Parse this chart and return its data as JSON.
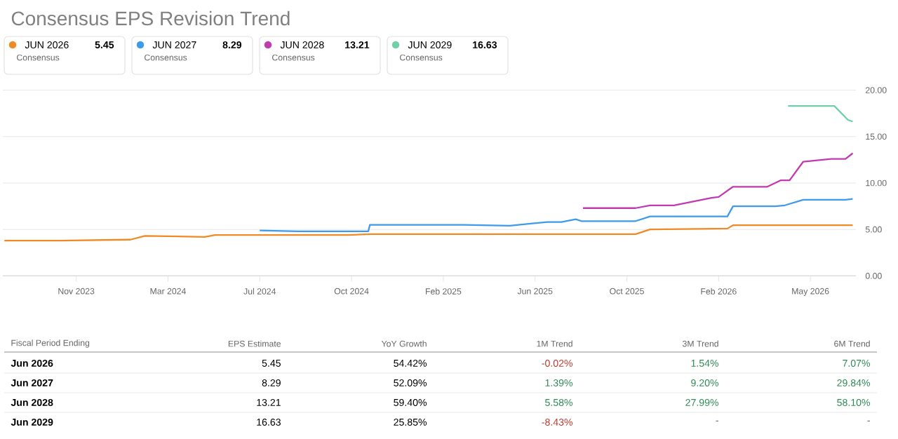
{
  "chart_data": {
    "type": "line",
    "title": "Consensus EPS Revision Trend",
    "x": [
      "2023-08-22",
      "2023-10-31",
      "2024-01-23",
      "2024-01-27",
      "2024-02-14",
      "2024-04-29",
      "2024-05-12",
      "2024-10-25",
      "2024-11-22",
      "2025-10-21",
      "2025-11-08",
      "2026-02-13",
      "2026-02-20",
      "2026-07-20"
    ],
    "series": [
      {
        "name": "JUN 2026",
        "color": "#f08a24",
        "values": [
          3.8,
          3.8,
          3.9,
          3.9,
          4.3,
          4.2,
          4.4,
          4.4,
          4.5,
          4.5,
          5.0,
          5.1,
          5.45,
          5.45
        ]
      },
      {
        "name": "JUN 2027",
        "color": "#3d9be9",
        "x": [
          "2024-07-07",
          "2024-08-24",
          "2024-11-20",
          "2024-11-22",
          "2025-03-19",
          "2025-05-16",
          "2025-07-02",
          "2025-07-20",
          "2025-08-07",
          "2025-08-14",
          "2025-10-21",
          "2025-11-08",
          "2026-02-13",
          "2026-02-20",
          "2026-04-14",
          "2026-04-26",
          "2026-05-19",
          "2026-07-11",
          "2026-07-20"
        ],
        "values": [
          4.9,
          4.8,
          4.8,
          5.5,
          5.5,
          5.4,
          5.8,
          5.8,
          6.1,
          5.9,
          5.9,
          6.4,
          6.4,
          7.5,
          7.5,
          7.6,
          8.2,
          8.2,
          8.29
        ]
      },
      {
        "name": "JUN 2028",
        "color": "#c23ab0",
        "x": [
          "2025-08-16",
          "2025-10-21",
          "2025-11-08",
          "2025-12-08",
          "2026-01-24",
          "2026-02-02",
          "2026-02-20",
          "2026-04-04",
          "2026-04-21",
          "2026-05-02",
          "2026-05-19",
          "2026-06-23",
          "2026-07-11",
          "2026-07-20"
        ],
        "values": [
          7.3,
          7.3,
          7.6,
          7.6,
          8.4,
          8.5,
          9.6,
          9.6,
          10.3,
          10.3,
          12.3,
          12.6,
          12.6,
          13.21
        ]
      },
      {
        "name": "JUN 2029",
        "color": "#6fcfa8",
        "x": [
          "2026-04-30",
          "2026-06-27",
          "2026-07-14",
          "2026-07-20"
        ],
        "values": [
          18.3,
          18.3,
          16.8,
          16.63
        ]
      }
    ],
    "xlim": [
      "2023-08-20",
      "2026-07-24"
    ],
    "ylim": [
      0,
      20
    ],
    "xticks": [
      {
        "value": "2023-11-20",
        "label": "Nov 2023"
      },
      {
        "value": "2024-03-14",
        "label": "Mar 2024"
      },
      {
        "value": "2024-07-07",
        "label": "Jul 2024"
      },
      {
        "value": "2024-10-30",
        "label": "Oct 2024"
      },
      {
        "value": "2025-02-22",
        "label": "Feb 2025"
      },
      {
        "value": "2025-06-17",
        "label": "Jun 2025"
      },
      {
        "value": "2025-10-10",
        "label": "Oct 2025"
      },
      {
        "value": "2026-02-02",
        "label": "Feb 2026"
      },
      {
        "value": "2026-05-28",
        "label": "May 2026"
      }
    ],
    "yticks": [
      {
        "value": 0,
        "label": "0.00"
      },
      {
        "value": 5,
        "label": "5.00"
      },
      {
        "value": 10,
        "label": "10.00"
      },
      {
        "value": 15,
        "label": "15.00"
      },
      {
        "value": 20,
        "label": "20.00"
      }
    ],
    "grid": "y",
    "legend": "top",
    "marker": "none",
    "line_style": "solid",
    "annotations": [
      "5.45",
      "Consensus",
      "8.29",
      "Consensus",
      "13.21",
      "Consensus",
      "16.63",
      "Consensus",
      "Fiscal Period Ending",
      "EPS Estimate",
      "YoY Growth",
      "1M Trend",
      "3M Trend",
      "6M Trend",
      "Jun 2026",
      "5.45",
      "54.42%",
      "-0.02%",
      "1.54%",
      "7.07%",
      "Jun 2027",
      "8.29",
      "52.09%",
      "1.39%",
      "9.20%",
      "29.84%",
      "Jun 2028",
      "13.21",
      "59.40%",
      "5.58%",
      "27.99%",
      "58.10%",
      "Jun 2029",
      "16.63",
      "25.85%",
      "-8.43%",
      "-",
      "-"
    ]
  }
}
